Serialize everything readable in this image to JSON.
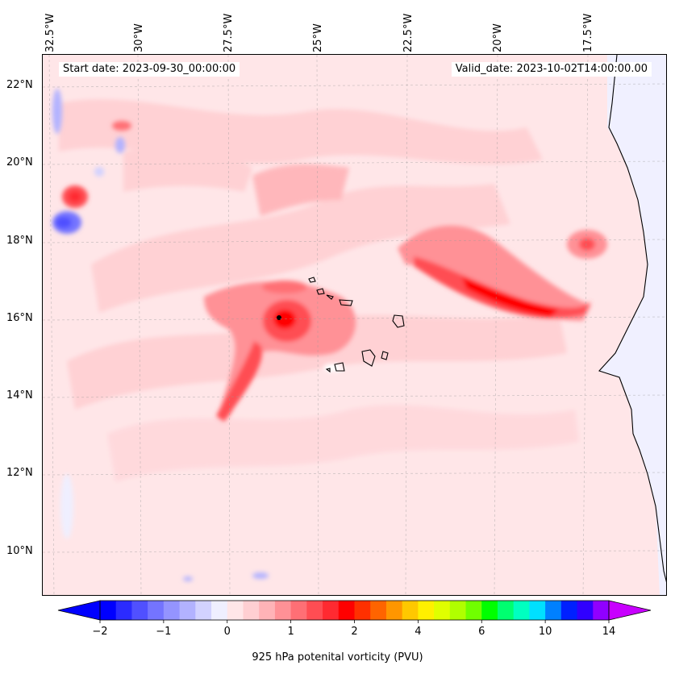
{
  "header": {
    "start_date": "Start date: 2023-09-30_00:00:00",
    "valid_date": "Valid_date: 2023-10-02T14:00:00.00"
  },
  "lon_labels": [
    "32.5°W",
    "30°W",
    "27.5°W",
    "25°W",
    "22.5°W",
    "20°W",
    "17.5°W"
  ],
  "lat_labels": [
    "22°N",
    "20°N",
    "18°N",
    "16°N",
    "14°N",
    "12°N",
    "10°N"
  ],
  "colorbar": {
    "label": "925 hPa potenital vorticity (PVU)",
    "ticks": [
      "−2",
      "−1",
      "0",
      "1",
      "2",
      "4",
      "6",
      "10",
      "14"
    ],
    "colors": [
      "#0000ff",
      "#2b2bff",
      "#5050ff",
      "#7474ff",
      "#9494ff",
      "#b2b2ff",
      "#d2d2ff",
      "#efefff",
      "#ffe6e8",
      "#ffcfd2",
      "#ffb3b7",
      "#ff9196",
      "#ff6f75",
      "#ff4d53",
      "#ff2a31",
      "#ff0000",
      "#ff3000",
      "#ff6400",
      "#ff9600",
      "#ffc800",
      "#fff000",
      "#e0ff00",
      "#b0ff00",
      "#70ff00",
      "#00ff00",
      "#00ff70",
      "#00ffc0",
      "#00e0ff",
      "#0080ff",
      "#0020ff",
      "#3000ff",
      "#9000ff"
    ],
    "extend_low": "#0000ff",
    "extend_high": "#c800ff"
  },
  "map": {
    "background_color": "#ffe6e8",
    "land_color": "#f0f0ff",
    "coastline_color": "#000000"
  }
}
